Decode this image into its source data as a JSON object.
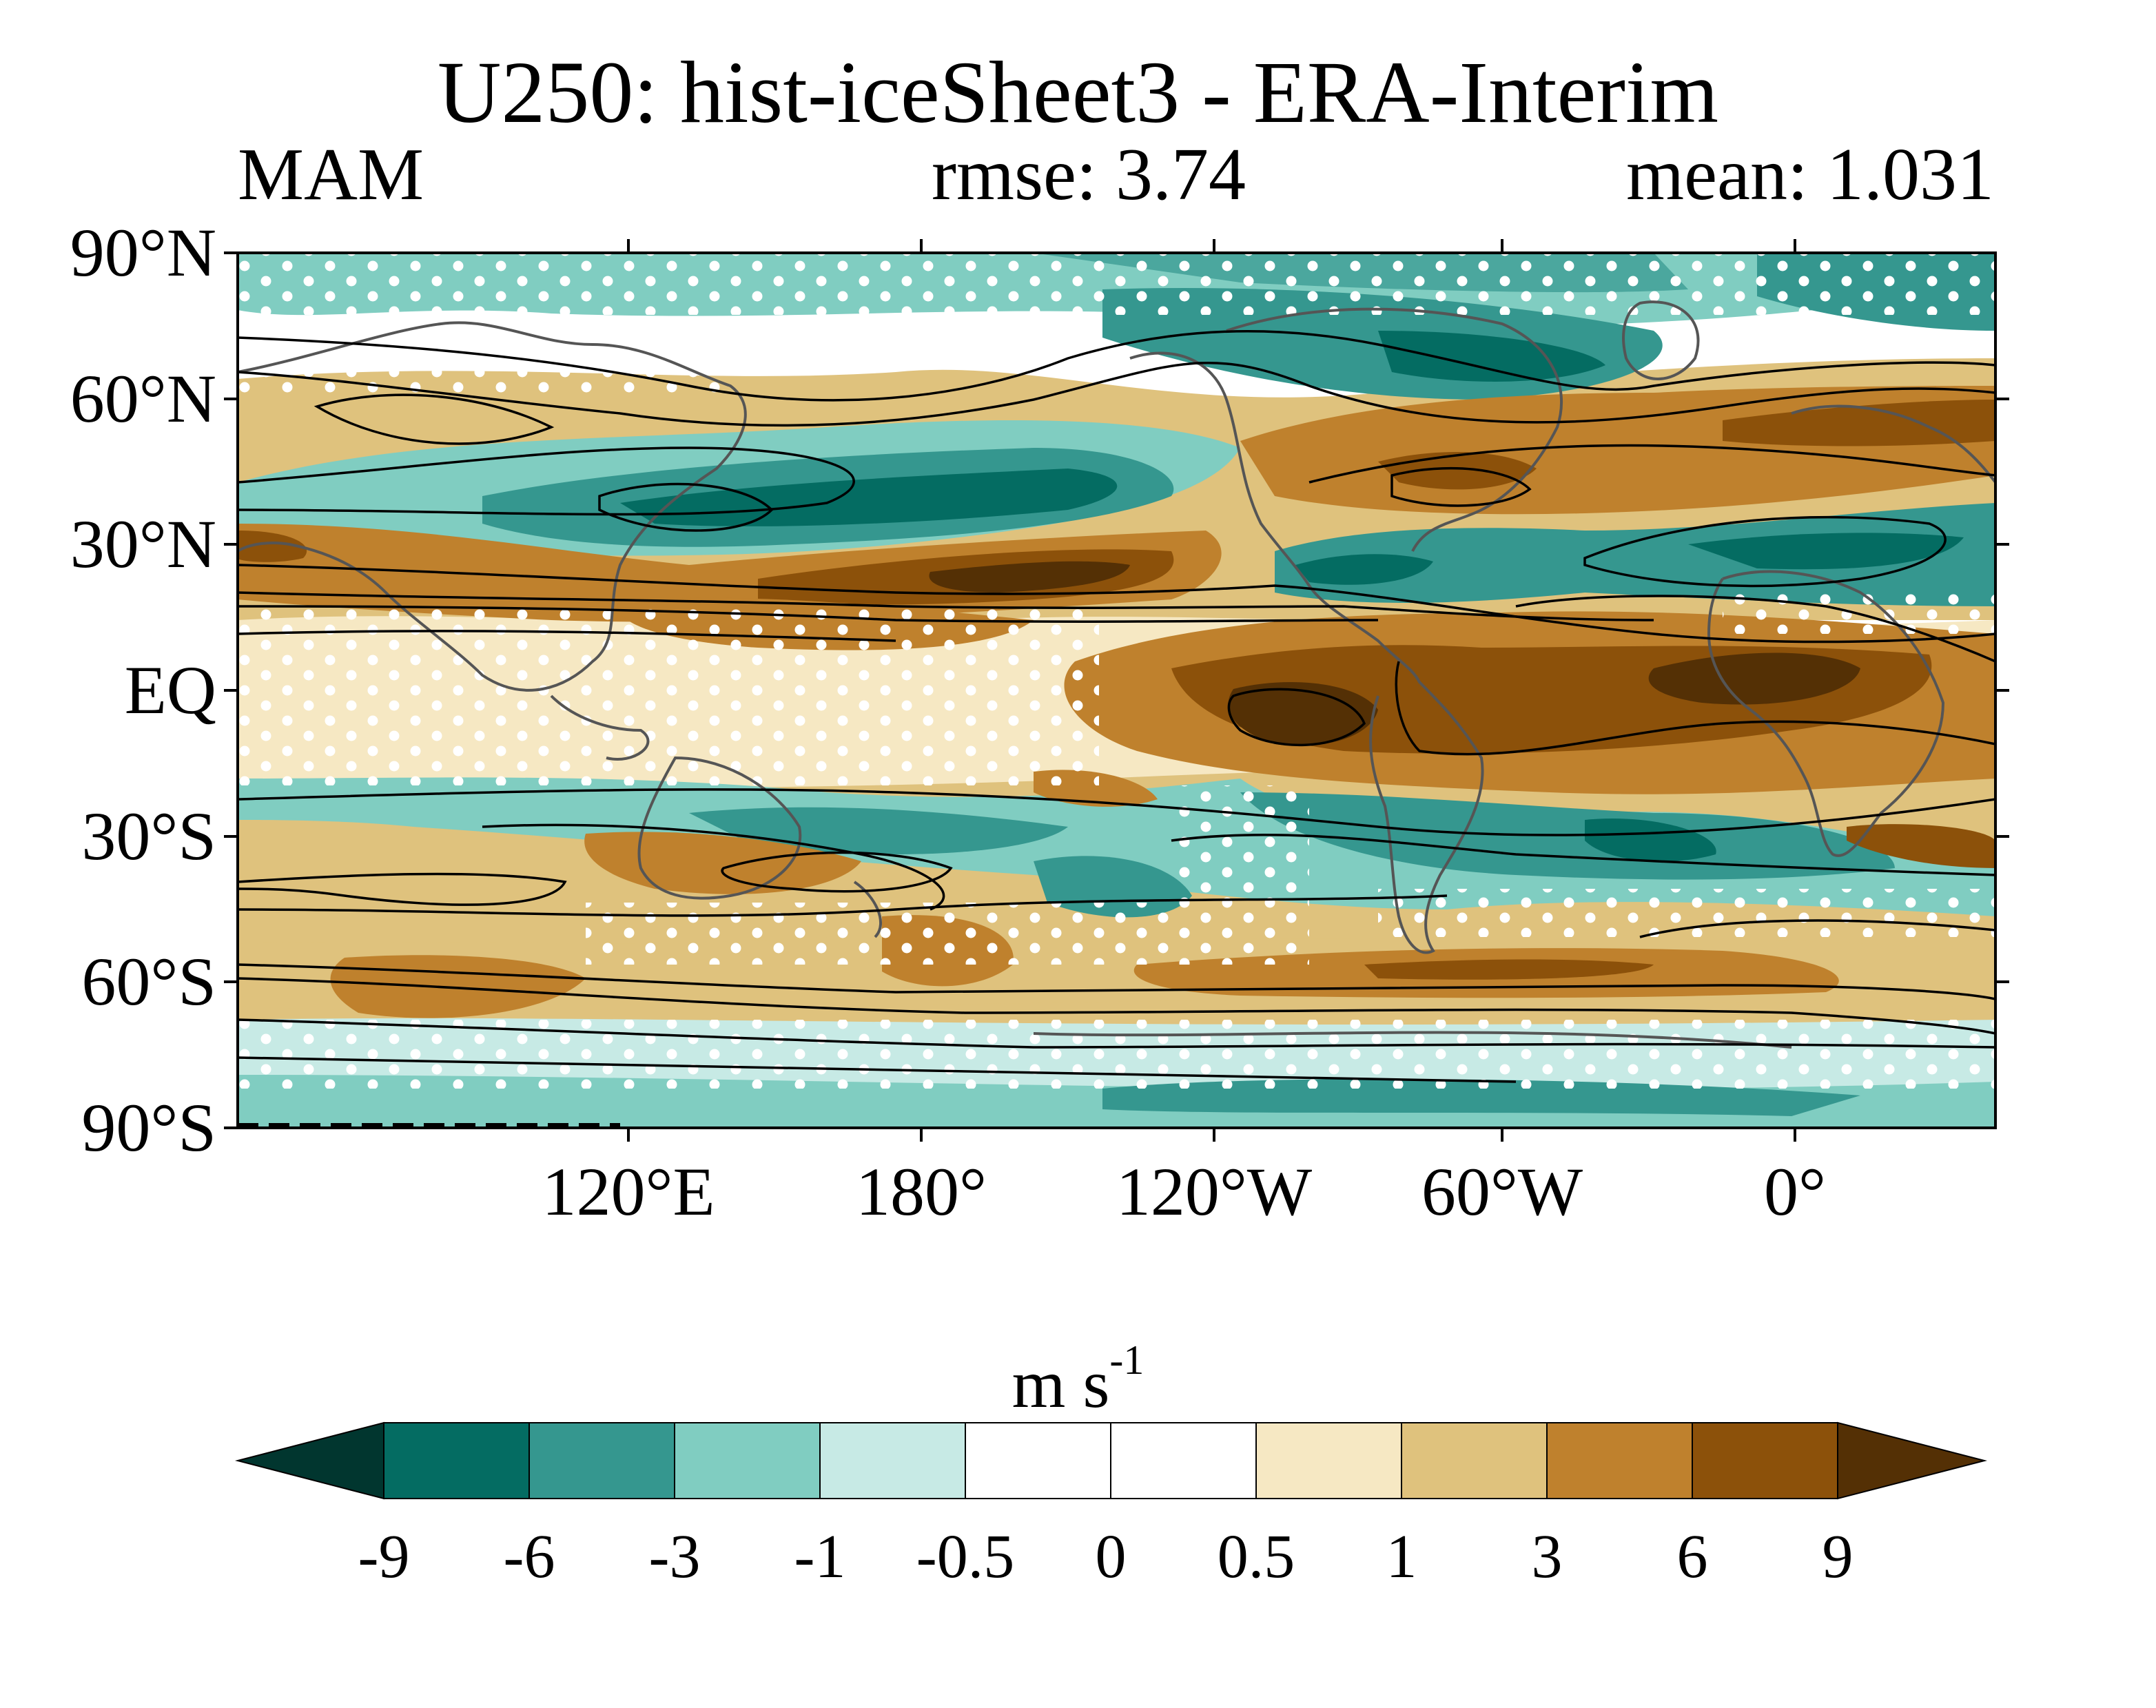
{
  "title": "U250: hist-iceSheet3 - ERA-Interim",
  "subtitle": {
    "season": "MAM",
    "rmse": "rmse: 3.74",
    "mean": "mean: 1.031"
  },
  "map": {
    "projection": "cylindrical equidistant, centred on Pacific",
    "lat_labels": [
      "90°N",
      "60°N",
      "30°N",
      "EQ",
      "30°S",
      "60°S",
      "90°S"
    ],
    "lon_labels": [
      "120°E",
      "180°",
      "120°W",
      "60°W",
      "0°"
    ],
    "lat_range": [
      -90,
      90
    ],
    "lon_range": [
      40,
      400
    ],
    "filled_field": "U250 bias (model minus ERA-Interim)",
    "contour_lines": "black, climatological U250",
    "stippling": "white dots mark insignificant regions",
    "coastline_color": "#555555"
  },
  "colorbar": {
    "units_main": "m s",
    "units_exp": "-1",
    "levels": [
      "-9",
      "-6",
      "-3",
      "-1",
      "-0.5",
      "0",
      "0.5",
      "1",
      "3",
      "6",
      "9"
    ],
    "colors": [
      "#01362f",
      "#046c62",
      "#35978f",
      "#80cdc1",
      "#c7eae5",
      "#ffffff",
      "#ffffff",
      "#f6e8c3",
      "#dfc27d",
      "#bf812d",
      "#8c510a",
      "#543005"
    ]
  }
}
